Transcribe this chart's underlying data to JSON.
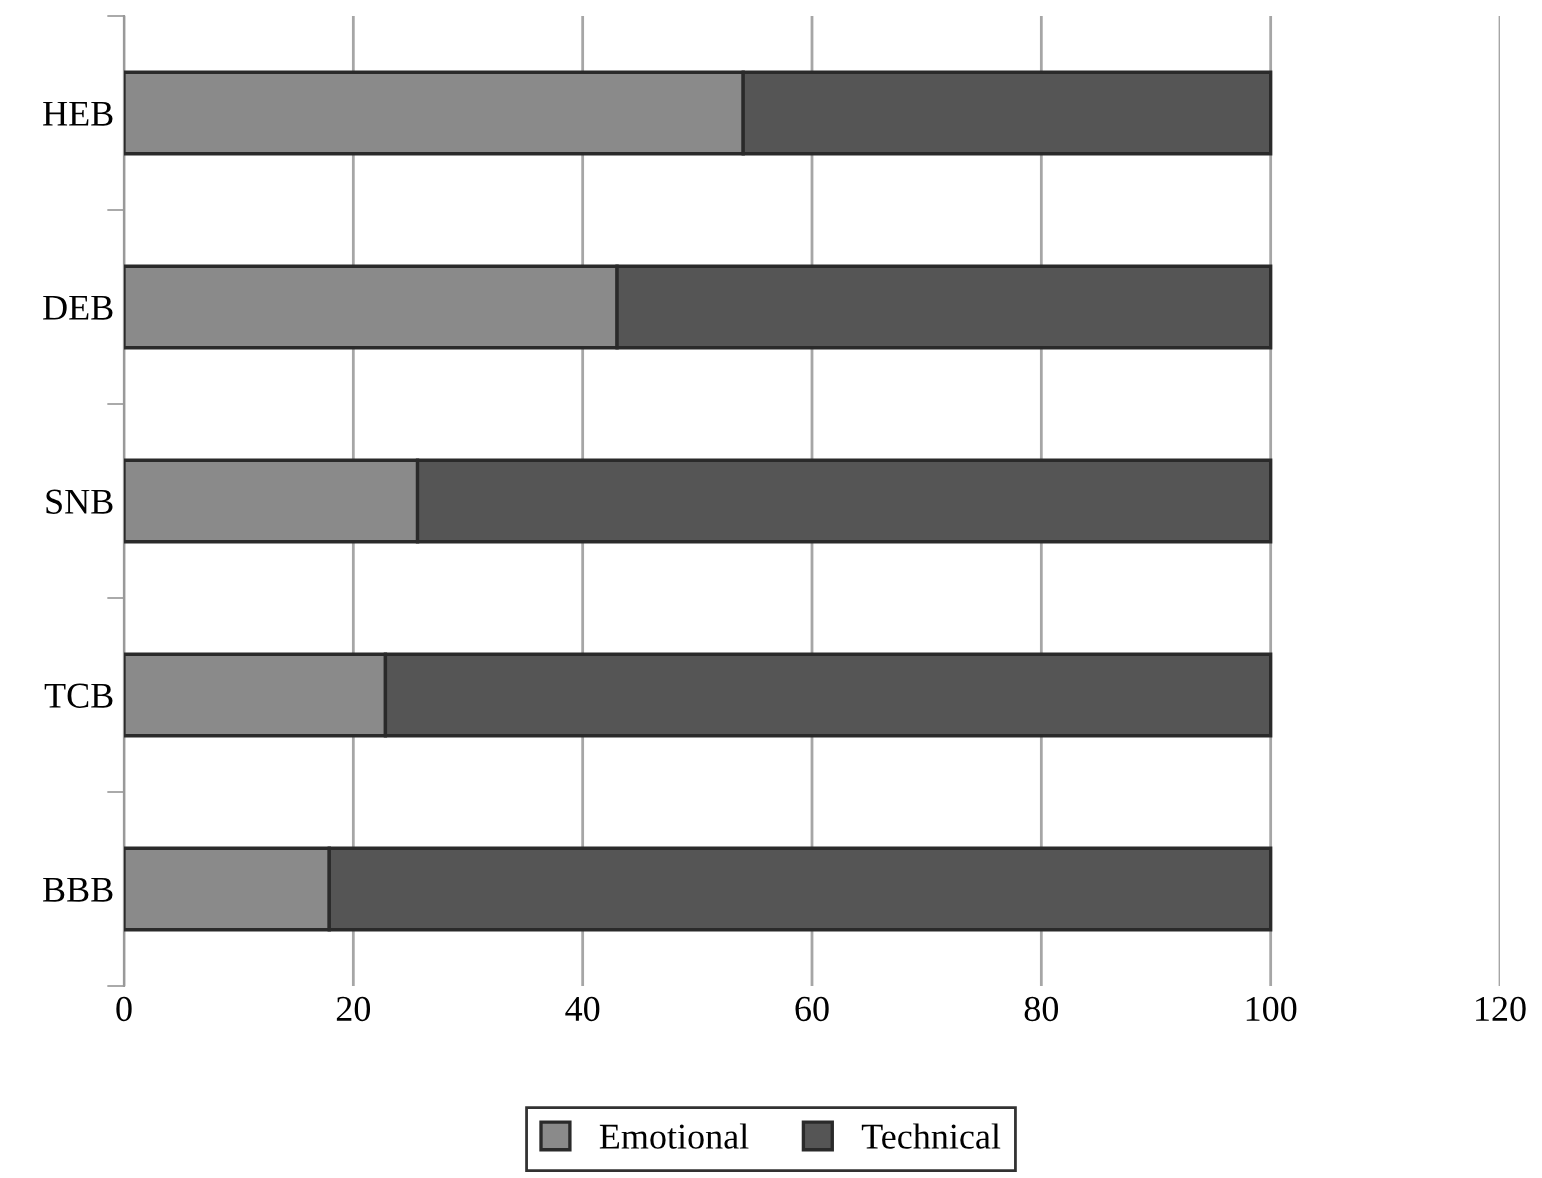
{
  "chart_data": {
    "type": "bar",
    "orientation": "horizontal",
    "stacked": true,
    "categories": [
      "HEB",
      "DEB",
      "SNB",
      "TCB",
      "BBB"
    ],
    "series": [
      {
        "name": "Emotional",
        "color": "#8a8a8a",
        "values": [
          54,
          43,
          25.6,
          22.8,
          17.9
        ]
      },
      {
        "name": "Technical",
        "color": "#555555",
        "values": [
          46,
          57,
          74.4,
          77.2,
          82.1
        ]
      }
    ],
    "xlim": [
      0,
      120
    ],
    "xticks": [
      0,
      20,
      40,
      60,
      80,
      100,
      120
    ],
    "grid": "x",
    "legend": "bottom"
  }
}
